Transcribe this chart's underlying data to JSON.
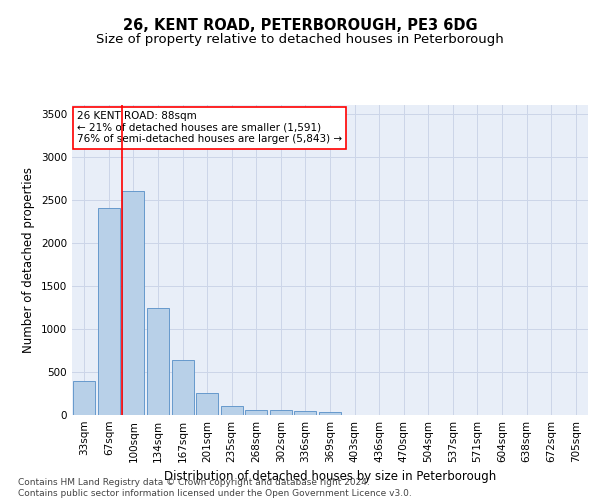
{
  "title": "26, KENT ROAD, PETERBOROUGH, PE3 6DG",
  "subtitle": "Size of property relative to detached houses in Peterborough",
  "xlabel": "Distribution of detached houses by size in Peterborough",
  "ylabel": "Number of detached properties",
  "footer_line1": "Contains HM Land Registry data © Crown copyright and database right 2024.",
  "footer_line2": "Contains public sector information licensed under the Open Government Licence v3.0.",
  "categories": [
    "33sqm",
    "67sqm",
    "100sqm",
    "134sqm",
    "167sqm",
    "201sqm",
    "235sqm",
    "268sqm",
    "302sqm",
    "336sqm",
    "369sqm",
    "403sqm",
    "436sqm",
    "470sqm",
    "504sqm",
    "537sqm",
    "571sqm",
    "604sqm",
    "638sqm",
    "672sqm",
    "705sqm"
  ],
  "values": [
    390,
    2400,
    2600,
    1240,
    640,
    260,
    100,
    60,
    60,
    50,
    30,
    0,
    0,
    0,
    0,
    0,
    0,
    0,
    0,
    0,
    0
  ],
  "bar_color": "#b8d0e8",
  "bar_edge_color": "#6699cc",
  "bar_linewidth": 0.7,
  "vline_x": 1.55,
  "vline_color": "red",
  "vline_linewidth": 1.2,
  "annotation_text": "26 KENT ROAD: 88sqm\n← 21% of detached houses are smaller (1,591)\n76% of semi-detached houses are larger (5,843) →",
  "annotation_box_color": "white",
  "annotation_box_edge": "red",
  "ylim": [
    0,
    3600
  ],
  "yticks": [
    0,
    500,
    1000,
    1500,
    2000,
    2500,
    3000,
    3500
  ],
  "grid_color": "#ccd5e8",
  "background_color": "#e8eef8",
  "title_fontsize": 10.5,
  "subtitle_fontsize": 9.5,
  "axis_label_fontsize": 8.5,
  "tick_fontsize": 7.5,
  "annotation_fontsize": 7.5,
  "footer_fontsize": 6.5
}
